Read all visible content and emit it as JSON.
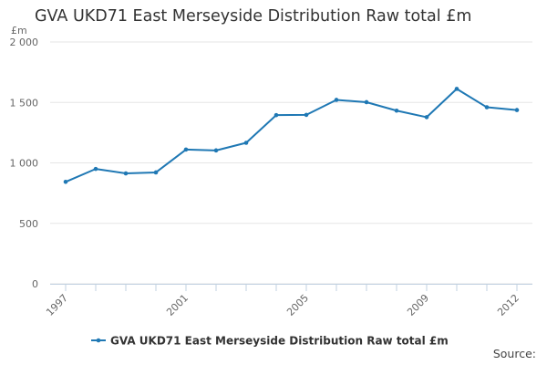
{
  "chart_data": {
    "type": "line",
    "title": "GVA UKD71 East Merseyside Distribution Raw total £m",
    "ylabel": "£m",
    "xlabel": "",
    "x": [
      1997,
      1998,
      1999,
      2000,
      2001,
      2002,
      2003,
      2004,
      2005,
      2006,
      2007,
      2008,
      2009,
      2010,
      2011,
      2012
    ],
    "x_tick_labels": [
      "1997",
      "2001",
      "2005",
      "2009",
      "2012"
    ],
    "y_ticks": [
      0,
      500,
      1000,
      1500,
      2000
    ],
    "y_tick_labels": [
      "0",
      "500",
      "1 000",
      "1 500",
      "2 000"
    ],
    "ylim": [
      0,
      2000
    ],
    "grid": true,
    "legend_position": "bottom-center",
    "series": [
      {
        "name": "GVA UKD71 East Merseyside Distribution Raw total £m",
        "color": "#1f78b4",
        "values": [
          843,
          950,
          913,
          921,
          1110,
          1103,
          1166,
          1395,
          1397,
          1521,
          1502,
          1432,
          1378,
          1612,
          1460,
          1437
        ]
      }
    ]
  },
  "source_label": "Source:"
}
